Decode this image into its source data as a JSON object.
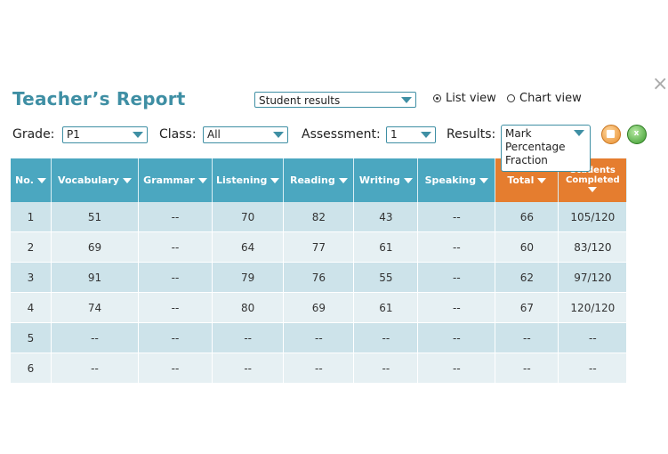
{
  "header": {
    "title": "Teacher’s Report",
    "view_select": "Student results",
    "list_view": "List view",
    "chart_view": "Chart view",
    "close_icon": "×"
  },
  "filters": {
    "grade_label": "Grade:",
    "grade_value": "P1",
    "class_label": "Class:",
    "class_value": "All",
    "assessment_label": "Assessment:",
    "assessment_value": "1",
    "results_label": "Results:",
    "results_options": [
      "Mark",
      "Percentage",
      "Fraction"
    ]
  },
  "icons": {
    "print": "print-icon",
    "excel": "excel-export-icon"
  },
  "table": {
    "columns": [
      "No.",
      "Vocabulary",
      "Grammar",
      "Listening",
      "Reading",
      "Writing",
      "Speaking",
      "Total",
      "Students Completed"
    ],
    "rows": [
      [
        "1",
        "51",
        "--",
        "70",
        "82",
        "43",
        "--",
        "66",
        "105/120"
      ],
      [
        "2",
        "69",
        "--",
        "64",
        "77",
        "61",
        "--",
        "60",
        "83/120"
      ],
      [
        "3",
        "91",
        "--",
        "79",
        "76",
        "55",
        "--",
        "62",
        "97/120"
      ],
      [
        "4",
        "74",
        "--",
        "80",
        "69",
        "61",
        "--",
        "67",
        "120/120"
      ],
      [
        "5",
        "--",
        "--",
        "--",
        "--",
        "--",
        "--",
        "--",
        "--"
      ],
      [
        "6",
        "--",
        "--",
        "--",
        "--",
        "--",
        "--",
        "--",
        "--"
      ]
    ]
  },
  "colors": {
    "teal": "#4ba7c0",
    "orange": "#e57d2f",
    "title": "#3f8fa4"
  }
}
